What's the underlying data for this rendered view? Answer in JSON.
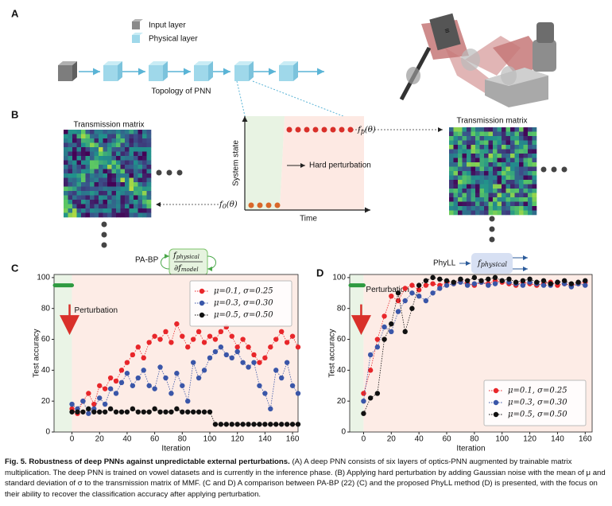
{
  "panels": {
    "letters": [
      "A",
      "B",
      "C",
      "D"
    ],
    "legend_input": "Input layer",
    "legend_physical": "Physical layer",
    "topology": "Topology of PNN",
    "transmission_left": "Transmission matrix",
    "transmission_right": "Transmission matrix",
    "system_state": "System state",
    "time": "Time",
    "hard_perturbation": "Hard perturbation",
    "fp": [
      "f",
      "p",
      "(θ)"
    ],
    "f0": [
      "f",
      "0",
      "(θ)"
    ],
    "pabp": "PA-BP",
    "pabp_formula": [
      "f",
      "physical",
      "∂f",
      "model"
    ],
    "phyll": "PhyLL",
    "phyll_formula": [
      "f",
      "physical"
    ]
  },
  "chart_data": [
    {
      "type": "scatter",
      "xlabel": "Iteration",
      "ylabel": "Test accuracy",
      "annotation": "Perturbation",
      "perturbation_x": 0,
      "initial_accuracy": 95,
      "xlim": [
        -13,
        164
      ],
      "ylim": [
        0,
        102
      ],
      "xticks": [
        0,
        20,
        40,
        60,
        80,
        100,
        120,
        140,
        160
      ],
      "yticks": [
        0,
        20,
        40,
        60,
        80,
        100
      ],
      "legend": "upper right",
      "x": [
        0,
        4,
        8,
        12,
        16,
        20,
        24,
        28,
        32,
        36,
        40,
        44,
        48,
        52,
        56,
        60,
        64,
        68,
        72,
        76,
        80,
        84,
        88,
        92,
        96,
        100,
        104,
        108,
        112,
        116,
        120,
        124,
        128,
        132,
        136,
        140,
        144,
        148,
        152,
        156,
        160,
        164
      ],
      "series": [
        {
          "name": "μ=0.1, σ=0.25",
          "color": "#e8262a",
          "values": [
            15,
            12,
            20,
            25,
            18,
            30,
            28,
            35,
            33,
            40,
            45,
            50,
            55,
            48,
            58,
            62,
            60,
            65,
            58,
            70,
            62,
            55,
            60,
            65,
            58,
            62,
            60,
            65,
            68,
            62,
            55,
            60,
            55,
            50,
            45,
            48,
            55,
            60,
            65,
            58,
            62,
            55
          ]
        },
        {
          "name": "μ=0.3, σ=0.30",
          "color": "#3a56a8",
          "values": [
            18,
            15,
            20,
            12,
            15,
            22,
            18,
            28,
            25,
            32,
            38,
            30,
            35,
            40,
            30,
            28,
            42,
            35,
            25,
            38,
            30,
            20,
            45,
            35,
            40,
            48,
            52,
            55,
            50,
            48,
            52,
            45,
            42,
            45,
            30,
            25,
            15,
            40,
            35,
            45,
            30,
            25
          ]
        },
        {
          "name": "μ=0.5, σ=0.50",
          "color": "#111111",
          "values": [
            13,
            13,
            13,
            15,
            13,
            13,
            13,
            15,
            13,
            13,
            13,
            15,
            13,
            13,
            13,
            15,
            13,
            13,
            13,
            15,
            13,
            13,
            13,
            13,
            13,
            13,
            5,
            5,
            5,
            5,
            5,
            5,
            5,
            5,
            5,
            5,
            5,
            5,
            5,
            5,
            5,
            5
          ]
        }
      ]
    },
    {
      "type": "scatter",
      "xlabel": "Iteration",
      "ylabel": "Test accuracy",
      "annotation": "Perturbation",
      "perturbation_x": 0,
      "initial_accuracy": 95,
      "xlim": [
        -10,
        165
      ],
      "ylim": [
        0,
        102
      ],
      "xticks": [
        0,
        20,
        40,
        60,
        80,
        100,
        120,
        140,
        160
      ],
      "yticks": [
        0,
        20,
        40,
        60,
        80,
        100
      ],
      "legend": "lower right",
      "x": [
        0,
        5,
        10,
        15,
        20,
        25,
        30,
        35,
        40,
        45,
        50,
        55,
        60,
        65,
        70,
        75,
        80,
        85,
        90,
        95,
        100,
        105,
        110,
        115,
        120,
        125,
        130,
        135,
        140,
        145,
        150,
        155,
        160
      ],
      "series": [
        {
          "name": "μ=0.1, σ=0.25",
          "color": "#e8262a",
          "values": [
            25,
            40,
            60,
            75,
            88,
            85,
            93,
            95,
            92,
            95,
            96,
            95,
            97,
            96,
            98,
            96,
            95,
            97,
            96,
            98,
            97,
            96,
            95,
            97,
            96,
            95,
            96,
            97,
            95,
            96,
            95,
            96,
            97
          ]
        },
        {
          "name": "μ=0.3, σ=0.30",
          "color": "#3a56a8",
          "values": [
            20,
            50,
            55,
            68,
            65,
            78,
            85,
            90,
            88,
            85,
            90,
            93,
            95,
            96,
            97,
            95,
            96,
            97,
            95,
            96,
            98,
            97,
            96,
            95,
            97,
            96,
            95,
            95,
            97,
            96,
            94,
            96,
            95
          ]
        },
        {
          "name": "μ=0.5, σ=0.50",
          "color": "#111111",
          "values": [
            12,
            22,
            25,
            60,
            70,
            90,
            65,
            80,
            95,
            98,
            100,
            99,
            98,
            97,
            99,
            98,
            100,
            98,
            99,
            100,
            98,
            99,
            97,
            98,
            99,
            97,
            98,
            96,
            97,
            98,
            96,
            97,
            98
          ]
        }
      ]
    }
  ],
  "caption": {
    "title": "Fig. 5. Robustness of deep PNNs against unpredictable external perturbations.",
    "text": "(A) A deep PNN consists of six layers of optics-PNN augmented by trainable matrix multiplication. The deep PNN is trained on vowel datasets and is currently in the inference phase. (B) Applying hard perturbation by adding Gaussian noise with the mean of μ and standard deviation of σ to the transmission matrix of MMF. (C and D) A comparison between PA-BP (22) (C) and the proposed PhyLL method (D) is presented, with the focus on their ability to recover the classification accuracy after applying perturbation."
  }
}
